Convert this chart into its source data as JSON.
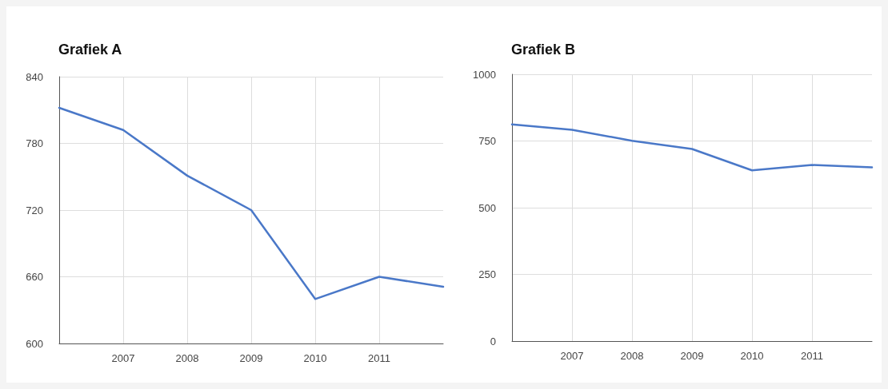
{
  "chart_data": [
    {
      "type": "line",
      "title": "Grafiek A",
      "x": [
        2006,
        2007,
        2008,
        2009,
        2010,
        2011,
        2012
      ],
      "series": [
        {
          "color": "#4a78c8",
          "values": [
            812,
            792,
            751,
            720,
            640,
            660,
            651
          ]
        }
      ],
      "xlim": [
        2006,
        2012
      ],
      "xticks": [
        2007,
        2008,
        2009,
        2010,
        2011
      ],
      "ylim": [
        600,
        840
      ],
      "yticks": [
        600,
        660,
        720,
        780,
        840
      ],
      "grid": true,
      "marker": "none",
      "line_style": "solid"
    },
    {
      "type": "line",
      "title": "Grafiek B",
      "x": [
        2006,
        2007,
        2008,
        2009,
        2010,
        2011,
        2012
      ],
      "series": [
        {
          "color": "#4a78c8",
          "values": [
            812,
            792,
            751,
            720,
            640,
            660,
            651
          ]
        }
      ],
      "xlim": [
        2006,
        2012
      ],
      "xticks": [
        2007,
        2008,
        2009,
        2010,
        2011
      ],
      "ylim": [
        0,
        1000
      ],
      "yticks": [
        0,
        250,
        500,
        750,
        1000
      ],
      "grid": true,
      "marker": "none",
      "line_style": "solid"
    }
  ]
}
